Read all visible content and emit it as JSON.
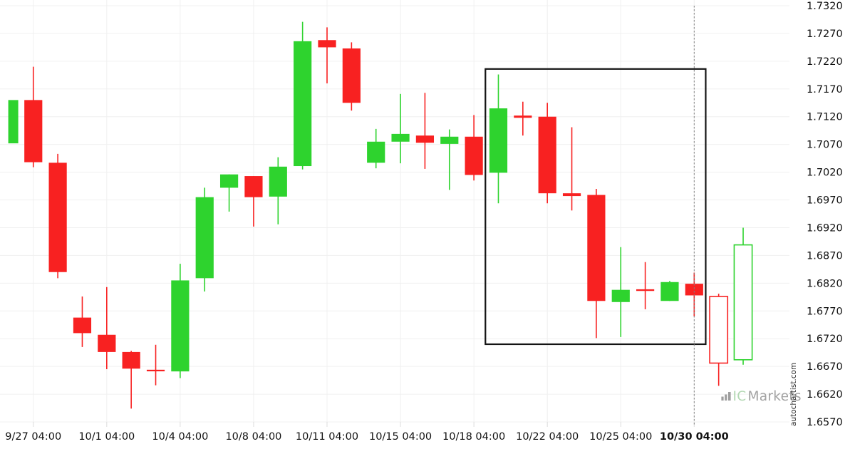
{
  "chart_data": {
    "type": "candlestick",
    "title": "",
    "legend_position": "none",
    "grid": true,
    "y_axis": {
      "side": "right",
      "max": 1.732,
      "min": 1.657,
      "step": 0.005,
      "tick_labels": [
        "1.7320",
        "1.7270",
        "1.7220",
        "1.7170",
        "1.7120",
        "1.7070",
        "1.7020",
        "1.6970",
        "1.6920",
        "1.6870",
        "1.6820",
        "1.6770",
        "1.6720",
        "1.6670",
        "1.6620",
        "1.6570"
      ]
    },
    "x_axis": {
      "labels": [
        {
          "candle_index": 1,
          "text": "9/27 04:00",
          "bold": false
        },
        {
          "candle_index": 4,
          "text": "10/1 04:00",
          "bold": false
        },
        {
          "candle_index": 7,
          "text": "10/4 04:00",
          "bold": false
        },
        {
          "candle_index": 10,
          "text": "10/8 04:00",
          "bold": false
        },
        {
          "candle_index": 13,
          "text": "10/11 04:00",
          "bold": false
        },
        {
          "candle_index": 16,
          "text": "10/15 04:00",
          "bold": false
        },
        {
          "candle_index": 19,
          "text": "10/18 04:00",
          "bold": false
        },
        {
          "candle_index": 22,
          "text": "10/22 04:00",
          "bold": false
        },
        {
          "candle_index": 25,
          "text": "10/25 04:00",
          "bold": false
        },
        {
          "candle_index": 28,
          "text": "10/30 04:00",
          "bold": true
        }
      ]
    },
    "candles": [
      {
        "o": 1.7072,
        "h": 1.715,
        "l": 1.7072,
        "c": 1.715,
        "dir": "up",
        "style": "solid",
        "clipped_left": true
      },
      {
        "o": 1.715,
        "h": 1.721,
        "l": 1.7029,
        "c": 1.7038,
        "dir": "down",
        "style": "solid"
      },
      {
        "o": 1.7037,
        "h": 1.7053,
        "l": 1.6829,
        "c": 1.684,
        "dir": "down",
        "style": "solid"
      },
      {
        "o": 1.6758,
        "h": 1.6796,
        "l": 1.6705,
        "c": 1.673,
        "dir": "down",
        "style": "solid"
      },
      {
        "o": 1.6727,
        "h": 1.6813,
        "l": 1.6665,
        "c": 1.6696,
        "dir": "down",
        "style": "solid"
      },
      {
        "o": 1.6696,
        "h": 1.6698,
        "l": 1.6594,
        "c": 1.6666,
        "dir": "down",
        "style": "solid"
      },
      {
        "o": 1.6664,
        "h": 1.6709,
        "l": 1.6636,
        "c": 1.6662,
        "dir": "down",
        "style": "solid"
      },
      {
        "o": 1.6661,
        "h": 1.6855,
        "l": 1.6649,
        "c": 1.6825,
        "dir": "up",
        "style": "solid"
      },
      {
        "o": 1.6829,
        "h": 1.6992,
        "l": 1.6805,
        "c": 1.6975,
        "dir": "up",
        "style": "solid"
      },
      {
        "o": 1.6992,
        "h": 1.7016,
        "l": 1.6949,
        "c": 1.7016,
        "dir": "up",
        "style": "solid"
      },
      {
        "o": 1.7013,
        "h": 1.7013,
        "l": 1.6922,
        "c": 1.6975,
        "dir": "down",
        "style": "solid"
      },
      {
        "o": 1.6976,
        "h": 1.7047,
        "l": 1.6926,
        "c": 1.703,
        "dir": "up",
        "style": "solid"
      },
      {
        "o": 1.7031,
        "h": 1.7291,
        "l": 1.7025,
        "c": 1.7256,
        "dir": "up",
        "style": "solid"
      },
      {
        "o": 1.7258,
        "h": 1.7281,
        "l": 1.718,
        "c": 1.7245,
        "dir": "down",
        "style": "solid"
      },
      {
        "o": 1.7243,
        "h": 1.7254,
        "l": 1.7131,
        "c": 1.7145,
        "dir": "down",
        "style": "solid"
      },
      {
        "o": 1.7037,
        "h": 1.7098,
        "l": 1.7027,
        "c": 1.7075,
        "dir": "up",
        "style": "solid"
      },
      {
        "o": 1.7075,
        "h": 1.7161,
        "l": 1.7036,
        "c": 1.7089,
        "dir": "up",
        "style": "solid"
      },
      {
        "o": 1.7086,
        "h": 1.7163,
        "l": 1.7026,
        "c": 1.7073,
        "dir": "down",
        "style": "solid"
      },
      {
        "o": 1.7071,
        "h": 1.7097,
        "l": 1.6988,
        "c": 1.7084,
        "dir": "up",
        "style": "solid"
      },
      {
        "o": 1.7084,
        "h": 1.7123,
        "l": 1.7005,
        "c": 1.7015,
        "dir": "down",
        "style": "solid"
      },
      {
        "o": 1.7019,
        "h": 1.7196,
        "l": 1.6964,
        "c": 1.7135,
        "dir": "up",
        "style": "solid"
      },
      {
        "o": 1.7122,
        "h": 1.7147,
        "l": 1.7086,
        "c": 1.7118,
        "dir": "down",
        "style": "solid"
      },
      {
        "o": 1.712,
        "h": 1.7145,
        "l": 1.6964,
        "c": 1.6982,
        "dir": "down",
        "style": "solid"
      },
      {
        "o": 1.6982,
        "h": 1.7101,
        "l": 1.6951,
        "c": 1.6977,
        "dir": "down",
        "style": "solid"
      },
      {
        "o": 1.6979,
        "h": 1.699,
        "l": 1.6721,
        "c": 1.6788,
        "dir": "down",
        "style": "solid"
      },
      {
        "o": 1.6786,
        "h": 1.6885,
        "l": 1.6723,
        "c": 1.6808,
        "dir": "up",
        "style": "solid"
      },
      {
        "o": 1.6809,
        "h": 1.6858,
        "l": 1.6773,
        "c": 1.6806,
        "dir": "down",
        "style": "solid"
      },
      {
        "o": 1.6788,
        "h": 1.6824,
        "l": 1.6788,
        "c": 1.6822,
        "dir": "up",
        "style": "solid"
      },
      {
        "o": 1.6819,
        "h": 1.6839,
        "l": 1.676,
        "c": 1.6798,
        "dir": "down",
        "style": "solid"
      },
      {
        "o": 1.6796,
        "h": 1.6801,
        "l": 1.6635,
        "c": 1.6676,
        "dir": "down",
        "style": "hollow"
      },
      {
        "o": 1.6682,
        "h": 1.692,
        "l": 1.6673,
        "c": 1.6889,
        "dir": "up",
        "style": "hollow"
      }
    ],
    "annotations": {
      "rectangle": {
        "from_candle": 19.47,
        "to_candle": 28.47,
        "top_price": 1.7206,
        "bottom_price": 1.671
      },
      "dashed_vline": {
        "candle_index": 28
      }
    },
    "colors": {
      "up": "#2ed32e",
      "down": "#f82121",
      "grid": "#f0f0f0",
      "tick": "#dcdcdc",
      "box": "#141414",
      "dashed_line": "#808080",
      "label": "#111111"
    }
  },
  "watermark": {
    "icon": "bars-icon",
    "brand_part1": "IC",
    "brand_part2": "Markets",
    "color_part1": "#b3d8b3",
    "color_part2": "#a2a2a2",
    "bars_color": "#8d8d8d"
  },
  "credit_vertical": "autochartist.com"
}
